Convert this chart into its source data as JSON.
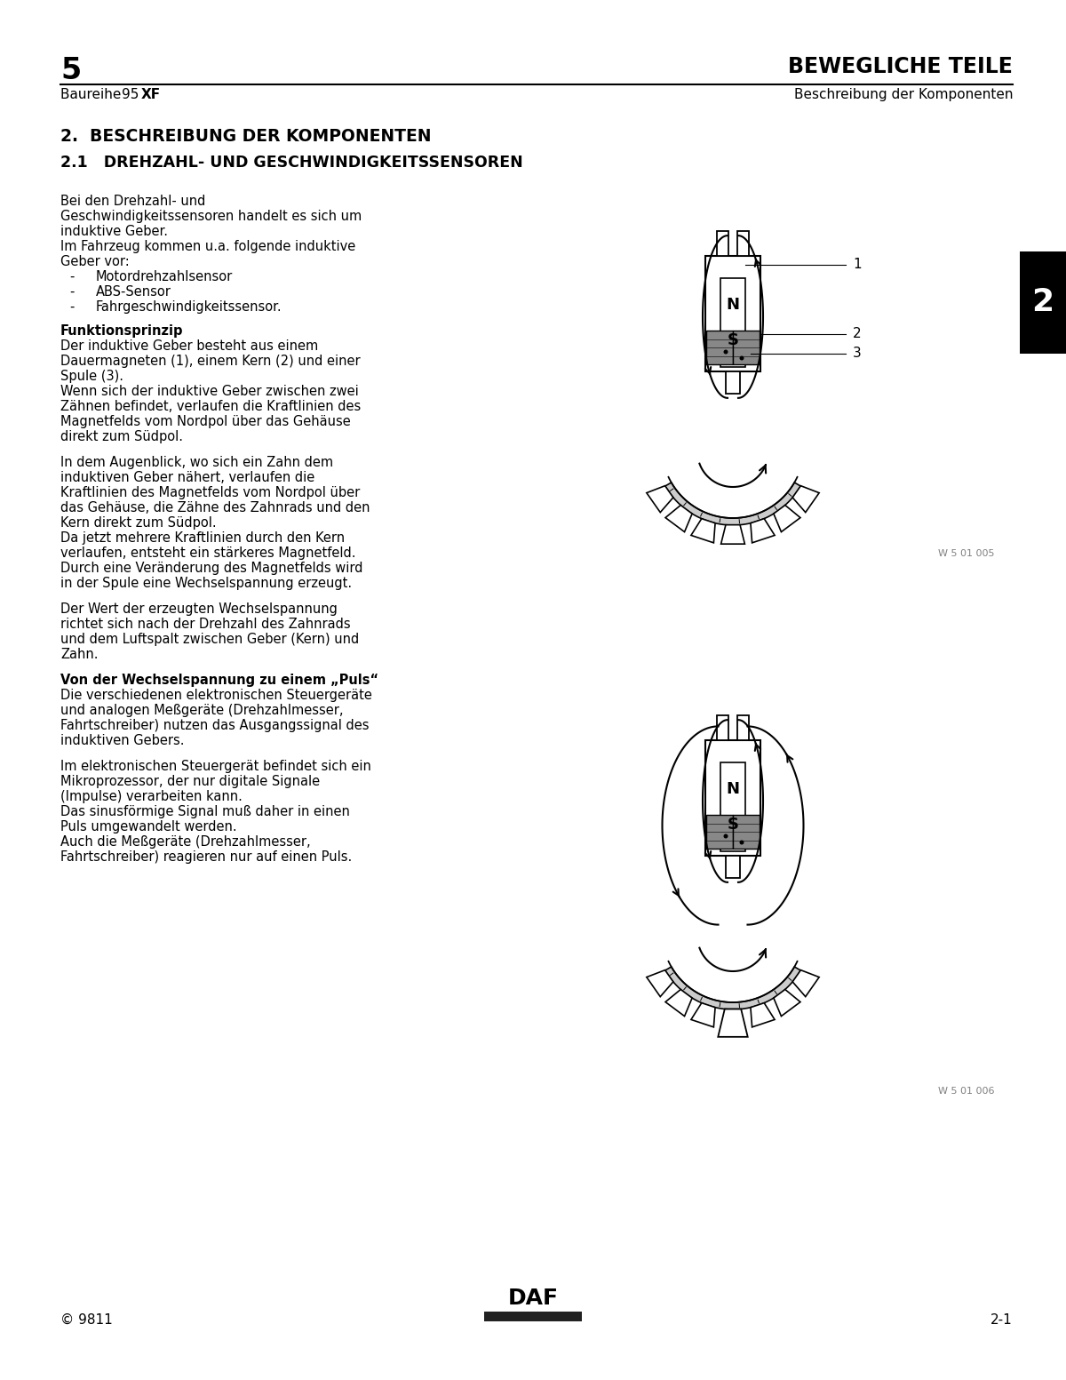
{
  "page_number": "5",
  "page_title": "BEWEGLICHE TEILE",
  "subtitle_left_plain": "Baureihe ",
  "subtitle_left_num": "95",
  "subtitle_left_bold": "XF",
  "subtitle_right": "Beschreibung der Komponenten",
  "section_title": "2.  BESCHREIBUNG DER KOMPONENTEN",
  "subsection_title": "2.1   DREHZAHL- UND GESCHWINDIGKEITSSENSOREN",
  "para1_lines": [
    "Bei den Drehzahl- und",
    "Geschwindigkeitssensoren handelt es sich um",
    "induktive Geber.",
    "Im Fahrzeug kommen u.a. folgende induktive",
    "Geber vor:"
  ],
  "bullets": [
    "Motordrehzahlsensor",
    "ABS-Sensor",
    "Fahrgeschwindigkeitssensor."
  ],
  "bold_head1": "Funktionsprinzip",
  "para2_lines": [
    "Der induktive Geber besteht aus einem",
    "Dauermagneten (1), einem Kern (2) und einer",
    "Spule (3).",
    "Wenn sich der induktive Geber zwischen zwei",
    "Zähnen befindet, verlaufen die Kraftlinien des",
    "Magnetfelds vom Nordpol über das Gehäuse",
    "direkt zum Südpol."
  ],
  "para3_lines": [
    "In dem Augenblick, wo sich ein Zahn dem",
    "induktiven Geber nähert, verlaufen die",
    "Kraftlinien des Magnetfelds vom Nordpol über",
    "das Gehäuse, die Zähne des Zahnrads und den",
    "Kern direkt zum Südpol.",
    "Da jetzt mehrere Kraftlinien durch den Kern",
    "verlaufen, entsteht ein stärkeres Magnetfeld.",
    "Durch eine Veränderung des Magnetfelds wird",
    "in der Spule eine Wechselspannung erzeugt."
  ],
  "para4_lines": [
    "Der Wert der erzeugten Wechselspannung",
    "richtet sich nach der Drehzahl des Zahnrads",
    "und dem Luftspalt zwischen Geber (Kern) und",
    "Zahn."
  ],
  "bold_head2": "Von der Wechselspannung zu einem „Puls“",
  "para5_lines": [
    "Die verschiedenen elektronischen Steuergeräte",
    "und analogen Meßgeräte (Drehzahlmesser,",
    "Fahrtschreiber) nutzen das Ausgangssignal des",
    "induktiven Gebers."
  ],
  "para6_lines": [
    "Im elektronischen Steuergerät befindet sich ein",
    "Mikroprozessor, der nur digitale Signale",
    "(Impulse) verarbeiten kann.",
    "Das sinusförmige Signal muß daher in einen",
    "Puls umgewandelt werden.",
    "Auch die Meßgeräte (Drehzahlmesser,",
    "Fahrtschreiber) reagieren nur auf einen Puls."
  ],
  "fig1_label": "W 5 01 005",
  "fig2_label": "W 5 01 006",
  "sidebar_number": "2",
  "footer_copyright": "© 9811",
  "footer_page": "2-1",
  "bg": "#ffffff",
  "fg": "#000000",
  "gray": "#808080",
  "dgray": "#555555",
  "mgray": "#999999",
  "lgray": "#cccccc"
}
